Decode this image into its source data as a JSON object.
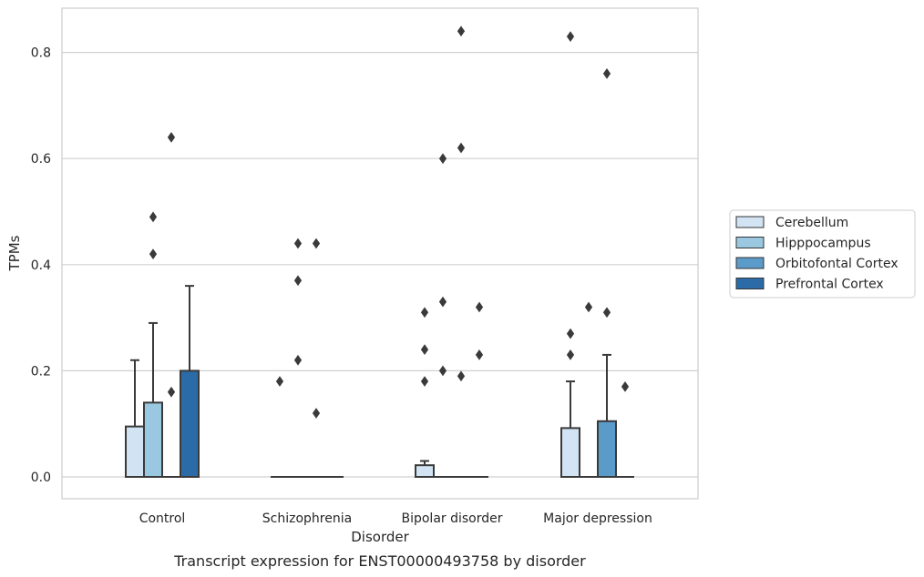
{
  "chart_data": {
    "type": "box",
    "caption": "Transcript expression for ENST00000493758 by disorder",
    "xlabel": "Disorder",
    "ylabel": "TPMs",
    "ylim": [
      -0.04,
      0.885
    ],
    "yticks": [
      0.0,
      0.2,
      0.4,
      0.6,
      0.8
    ],
    "ytick_labels": [
      "0.0",
      "0.2",
      "0.4",
      "0.6",
      "0.8"
    ],
    "grid": "horizontal",
    "legend_placement": "right",
    "categories": [
      "Control",
      "Schizophrenia",
      "Bipolar disorder",
      "Major depression"
    ],
    "series": [
      {
        "name": "Cerebellum",
        "color": "#d2e3f3"
      },
      {
        "name": "Hipppocampus",
        "color": "#9ac8e0"
      },
      {
        "name": "Orbitofontal Cortex",
        "color": "#5a9bc9"
      },
      {
        "name": "Prefrontal Cortex",
        "color": "#2b6ca8"
      }
    ],
    "boxes": [
      [
        {
          "q1": 0.0,
          "q3": 0.095,
          "median": 0.0,
          "whisker_high": 0.22,
          "outliers": []
        },
        {
          "q1": 0.0,
          "q3": 0.14,
          "median": 0.0,
          "whisker_high": 0.29,
          "outliers": [
            0.42,
            0.49
          ]
        },
        {
          "q1": 0.0,
          "q3": 0.0,
          "median": 0.0,
          "whisker_high": 0.0,
          "outliers": [
            0.16,
            0.64
          ]
        },
        {
          "q1": 0.0,
          "q3": 0.2,
          "median": 0.0,
          "whisker_high": 0.36,
          "outliers": []
        }
      ],
      [
        {
          "q1": 0.0,
          "q3": 0.0,
          "median": 0.0,
          "whisker_high": 0.0,
          "outliers": [
            0.18
          ]
        },
        {
          "q1": 0.0,
          "q3": 0.0,
          "median": 0.0,
          "whisker_high": 0.0,
          "outliers": [
            0.22,
            0.37,
            0.44
          ]
        },
        {
          "q1": 0.0,
          "q3": 0.0,
          "median": 0.0,
          "whisker_high": 0.0,
          "outliers": [
            0.12,
            0.44
          ]
        },
        {
          "q1": 0.0,
          "q3": 0.0,
          "median": 0.0,
          "whisker_high": 0.0,
          "outliers": []
        }
      ],
      [
        {
          "q1": 0.0,
          "q3": 0.022,
          "median": 0.0,
          "whisker_high": 0.03,
          "outliers": [
            0.18,
            0.24,
            0.31
          ]
        },
        {
          "q1": 0.0,
          "q3": 0.0,
          "median": 0.0,
          "whisker_high": 0.0,
          "outliers": [
            0.2,
            0.33,
            0.6
          ]
        },
        {
          "q1": 0.0,
          "q3": 0.0,
          "median": 0.0,
          "whisker_high": 0.0,
          "outliers": [
            0.19,
            0.62,
            0.84
          ]
        },
        {
          "q1": 0.0,
          "q3": 0.0,
          "median": 0.0,
          "whisker_high": 0.0,
          "outliers": [
            0.23,
            0.32
          ]
        }
      ],
      [
        {
          "q1": 0.0,
          "q3": 0.092,
          "median": 0.0,
          "whisker_high": 0.18,
          "outliers": [
            0.23,
            0.27,
            0.83
          ]
        },
        {
          "q1": 0.0,
          "q3": 0.0,
          "median": 0.0,
          "whisker_high": 0.0,
          "outliers": [
            0.32
          ]
        },
        {
          "q1": 0.0,
          "q3": 0.105,
          "median": 0.0,
          "whisker_high": 0.23,
          "outliers": [
            0.31,
            0.76
          ]
        },
        {
          "q1": 0.0,
          "q3": 0.0,
          "median": 0.0,
          "whisker_high": 0.0,
          "outliers": [
            0.17
          ]
        }
      ]
    ]
  }
}
